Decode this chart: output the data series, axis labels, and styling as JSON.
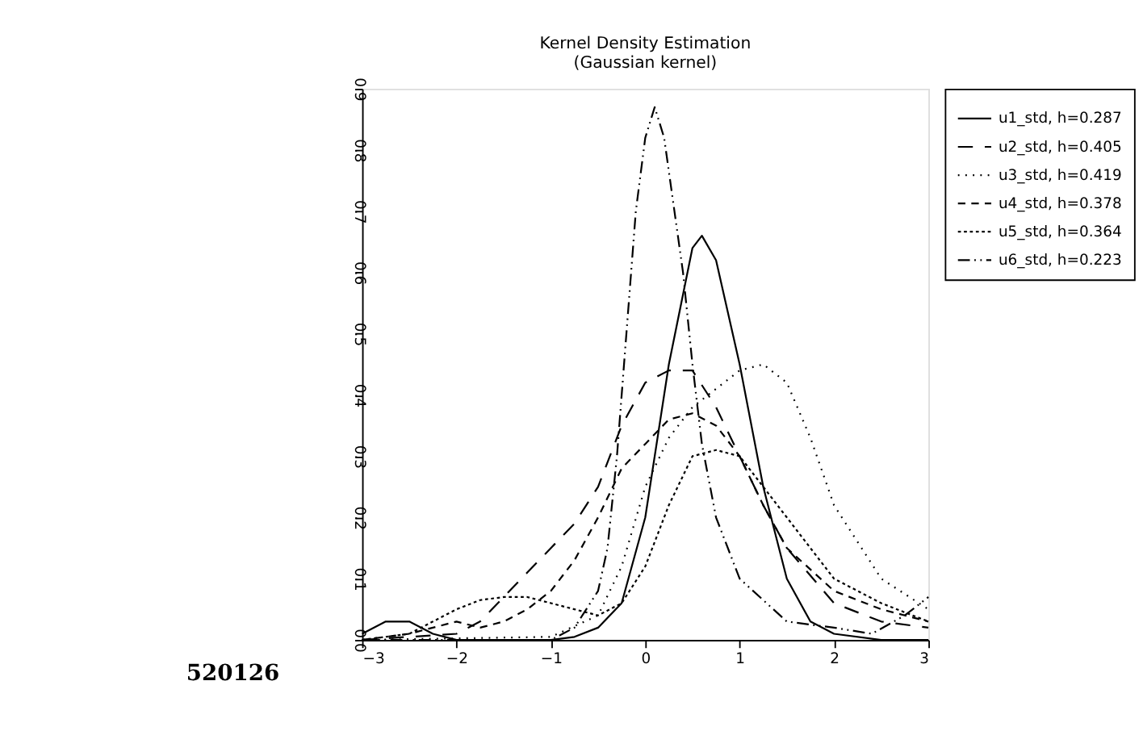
{
  "chart_data": {
    "type": "line",
    "title": [
      "Kernel Density Estimation",
      "(Gaussian kernel)"
    ],
    "xlim": [
      -3,
      3
    ],
    "xticks": [
      -3,
      -2,
      -1,
      0,
      1,
      2,
      3
    ],
    "ylim": [
      0,
      0.9
    ],
    "yticks": [
      {
        "value": 0,
        "label": "0.0"
      },
      {
        "value": 0.1,
        "label": "0.1"
      },
      {
        "value": 0.2,
        "label": "0.2"
      },
      {
        "value": 0.3,
        "label": "0.3"
      },
      {
        "value": 0.4,
        "label": "0.4"
      },
      {
        "value": 0.5,
        "label": "0.5"
      },
      {
        "value": 0.6,
        "label": "0.6"
      },
      {
        "value": 0.7,
        "label": "0.7"
      },
      {
        "value": 0.8,
        "label": "0.8"
      },
      {
        "value": 0.9,
        "label": "0.9"
      }
    ],
    "grid": false,
    "legend": "right",
    "marker": "none",
    "annotations": [
      "520126"
    ],
    "series": [
      {
        "name": "u1_std, h=0.287",
        "color": "#000000",
        "line_style": "solid",
        "x": [
          -3,
          -2.75,
          -2.5,
          -2.25,
          -2,
          -1.5,
          -1,
          -0.75,
          -0.5,
          -0.25,
          0,
          0.25,
          0.5,
          0.6,
          0.75,
          1,
          1.25,
          1.5,
          1.75,
          2,
          2.5,
          3
        ],
        "values": [
          0.01,
          0.03,
          0.03,
          0.01,
          0,
          0,
          0,
          0.005,
          0.02,
          0.06,
          0.2,
          0.45,
          0.64,
          0.66,
          0.62,
          0.45,
          0.25,
          0.1,
          0.03,
          0.01,
          0,
          0
        ]
      },
      {
        "name": "u2_std, h=0.405",
        "color": "#000000",
        "line_style": "longdash",
        "x": [
          -3,
          -2,
          -1.75,
          -1.5,
          -1.25,
          -1,
          -0.75,
          -0.5,
          -0.25,
          0,
          0.25,
          0.5,
          0.75,
          1,
          1.25,
          1.5,
          2,
          2.5,
          3
        ],
        "values": [
          0,
          0.01,
          0.03,
          0.07,
          0.11,
          0.15,
          0.19,
          0.25,
          0.35,
          0.42,
          0.44,
          0.44,
          0.38,
          0.3,
          0.22,
          0.15,
          0.06,
          0.03,
          0.02
        ]
      },
      {
        "name": "u3_std, h=0.419",
        "color": "#000000",
        "line_style": "dotted",
        "x": [
          -3,
          -1,
          -0.5,
          -0.25,
          0,
          0.25,
          0.5,
          0.75,
          1,
          1.25,
          1.5,
          1.75,
          2,
          2.5,
          3
        ],
        "values": [
          0,
          0.005,
          0.04,
          0.12,
          0.25,
          0.33,
          0.38,
          0.41,
          0.44,
          0.45,
          0.42,
          0.33,
          0.22,
          0.1,
          0.05
        ]
      },
      {
        "name": "u4_std, h=0.378",
        "color": "#000000",
        "line_style": "dashed",
        "x": [
          -3,
          -2.5,
          -2.25,
          -2,
          -1.75,
          -1.5,
          -1.25,
          -1,
          -0.75,
          -0.5,
          -0.25,
          0,
          0.25,
          0.5,
          0.75,
          1,
          1.25,
          1.5,
          2,
          2.5,
          3
        ],
        "values": [
          0,
          0.01,
          0.02,
          0.03,
          0.02,
          0.03,
          0.05,
          0.08,
          0.13,
          0.2,
          0.28,
          0.32,
          0.36,
          0.37,
          0.35,
          0.3,
          0.22,
          0.15,
          0.08,
          0.05,
          0.03
        ]
      },
      {
        "name": "u5_std, h=0.364",
        "color": "#000000",
        "line_style": "densedot",
        "x": [
          -3,
          -2.5,
          -2.25,
          -2,
          -1.75,
          -1.5,
          -1.25,
          -1,
          -0.75,
          -0.5,
          -0.25,
          0,
          0.25,
          0.5,
          0.75,
          1,
          1.5,
          2,
          2.5,
          3
        ],
        "values": [
          0,
          0.01,
          0.03,
          0.05,
          0.065,
          0.07,
          0.07,
          0.06,
          0.05,
          0.04,
          0.06,
          0.12,
          0.22,
          0.3,
          0.31,
          0.3,
          0.2,
          0.1,
          0.06,
          0.03
        ]
      },
      {
        "name": "u6_std, h=0.223",
        "color": "#000000",
        "line_style": "dashdot",
        "x": [
          -3,
          -1,
          -0.75,
          -0.5,
          -0.4,
          -0.3,
          -0.2,
          -0.1,
          0,
          0.1,
          0.2,
          0.4,
          0.5,
          0.6,
          0.75,
          1,
          1.5,
          2,
          2.4,
          2.75,
          3
        ],
        "values": [
          0,
          0,
          0.02,
          0.08,
          0.15,
          0.3,
          0.5,
          0.7,
          0.82,
          0.87,
          0.82,
          0.6,
          0.45,
          0.32,
          0.2,
          0.1,
          0.03,
          0.02,
          0.01,
          0.04,
          0.07
        ]
      }
    ]
  }
}
